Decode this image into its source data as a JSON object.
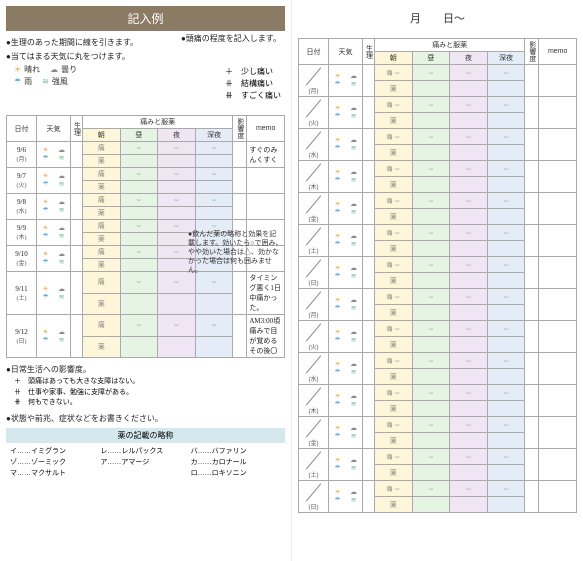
{
  "left": {
    "title": "記入例",
    "bullets": {
      "period": "●生理のあった期間に線を引きます。",
      "weather": "●当てはまる天気に丸をつけます。",
      "severity": "●頭痛の程度を記入します。",
      "impact": "●日常生活への影響度。",
      "notes": "●状態や前兆、症状などをお書きください。"
    },
    "weather_legend": [
      {
        "icon": "☀",
        "label": "晴れ",
        "color": "#f6a93a"
      },
      {
        "icon": "☁",
        "label": "曇り",
        "color": "#8a8a8a"
      },
      {
        "icon": "☂",
        "label": "雨",
        "color": "#5ab3e3"
      },
      {
        "icon": "≋",
        "label": "強風",
        "color": "#6fbf8f"
      }
    ],
    "severity_legend": [
      {
        "mark": "＋",
        "label": "少し痛い"
      },
      {
        "mark": "⧺",
        "label": "結構痛い"
      },
      {
        "mark": "⧻",
        "label": "すごく痛い"
      }
    ],
    "impact_legend": [
      {
        "mark": "＋",
        "label": "頭痛はあっても大きな支障はない。"
      },
      {
        "mark": "⧺",
        "label": "仕事や家事、勉強に支障がある。"
      },
      {
        "mark": "⧻",
        "label": "何もできない。"
      }
    ],
    "headers": {
      "date": "日付",
      "weather": "天気",
      "period": "生理",
      "pain_med": "痛みと服薬",
      "impact": "影響度",
      "memo": "memo",
      "times": [
        "朝",
        "昼",
        "夜",
        "深夜"
      ]
    },
    "rows": [
      {
        "date": "9/6",
        "dow": "(月)",
        "memo": "すぐのみんくすく"
      },
      {
        "date": "9/7",
        "dow": "(火)",
        "memo": ""
      },
      {
        "date": "9/8",
        "dow": "(水)",
        "memo": ""
      },
      {
        "date": "9/9",
        "dow": "(木)",
        "memo": ""
      },
      {
        "date": "9/10",
        "dow": "(金)",
        "memo": ""
      },
      {
        "date": "9/11",
        "dow": "(土)",
        "memo": "タイミング悪く1日中痛かった。"
      },
      {
        "date": "9/12",
        "dow": "(日)",
        "memo": "AM3:00頃 痛みで目が覚める その後〇"
      }
    ],
    "med_note": "●飲んだ薬の略称と効果を記載します。効いたら○で囲み、やや効いた場合は△、効かなかった場合は何も囲みません。",
    "abbrev_title": "薬の記載の略称",
    "abbrev": [
      "イ……イミグラン",
      "レ……レルパックス",
      "バ……バファリン",
      "ゾ……ゾーミック",
      "ア……アマージ",
      "カ……カロナール",
      "マ……マクサルト",
      "",
      "ロ……ロキソニン"
    ]
  },
  "right": {
    "title": "月　　日〜",
    "headers": {
      "date": "日付",
      "weather": "天気",
      "period": "生理",
      "pain_med": "痛みと服薬",
      "impact": "影響度",
      "memo": "memo",
      "times": [
        "朝",
        "昼",
        "夜",
        "深夜"
      ]
    },
    "dows": [
      "(月)",
      "(火)",
      "(水)",
      "(木)",
      "(金)",
      "(土)",
      "(日)",
      "(月)",
      "(火)",
      "(水)",
      "(木)",
      "(金)",
      "(土)",
      "(日)"
    ],
    "pain_label": "痛薬"
  },
  "colors": {
    "morning": "#fdf6d9",
    "noon": "#e5f4e3",
    "night": "#f0e5f2",
    "late": "#e3ecf7"
  }
}
